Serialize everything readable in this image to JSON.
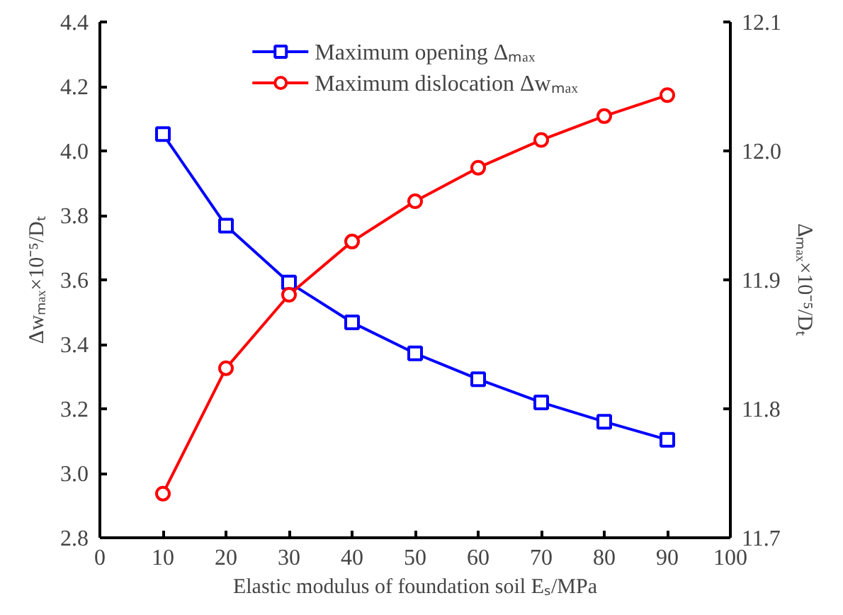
{
  "chart_data": {
    "type": "line",
    "xlabel": "Elastic modulus of foundation soil Eₛ/MPa",
    "ylabel": "Δwₘₐₓ×10⁻⁵/Dₜ",
    "y2label": "Δₘₐₓ×10⁻⁵/Dₜ",
    "x": [
      10,
      20,
      30,
      40,
      50,
      60,
      70,
      80,
      90
    ],
    "series": [
      {
        "name": "Maximum opening Δₘₐₓ",
        "color": "#0000ff",
        "marker": "square",
        "axis": "y2",
        "values": [
          12.013,
          11.942,
          11.898,
          11.867,
          11.843,
          11.823,
          11.805,
          11.79,
          11.776
        ]
      },
      {
        "name": "Maximum dislocation Δwₘₐₓ",
        "color": "#ff0000",
        "marker": "circle",
        "values": [
          2.937,
          3.326,
          3.554,
          3.719,
          3.844,
          3.948,
          4.034,
          4.108,
          4.173
        ]
      }
    ],
    "xlim": [
      0,
      100
    ],
    "xticks": [
      0,
      10,
      20,
      30,
      40,
      50,
      60,
      70,
      80,
      90,
      100
    ],
    "ylim": [
      2.8,
      4.4
    ],
    "yticks": [
      {
        "value": 2.8,
        "label": "2.8"
      },
      {
        "value": 3.0,
        "label": "3.0"
      },
      {
        "value": 3.2,
        "label": "3.2"
      },
      {
        "value": 3.4,
        "label": "3.4"
      },
      {
        "value": 3.6,
        "label": "3.6"
      },
      {
        "value": 3.8,
        "label": "3.8"
      },
      {
        "value": 4.0,
        "label": "4.0"
      },
      {
        "value": 4.2,
        "label": "4.2"
      },
      {
        "value": 4.4,
        "label": "4.4"
      }
    ],
    "y2lim": [
      11.7,
      12.1
    ],
    "y2ticks": [
      11.7,
      11.8,
      11.9,
      {
        "value": 12.0,
        "label": "12.0"
      },
      12.1
    ],
    "grid": false,
    "legend": "top",
    "line_style": "solid"
  }
}
